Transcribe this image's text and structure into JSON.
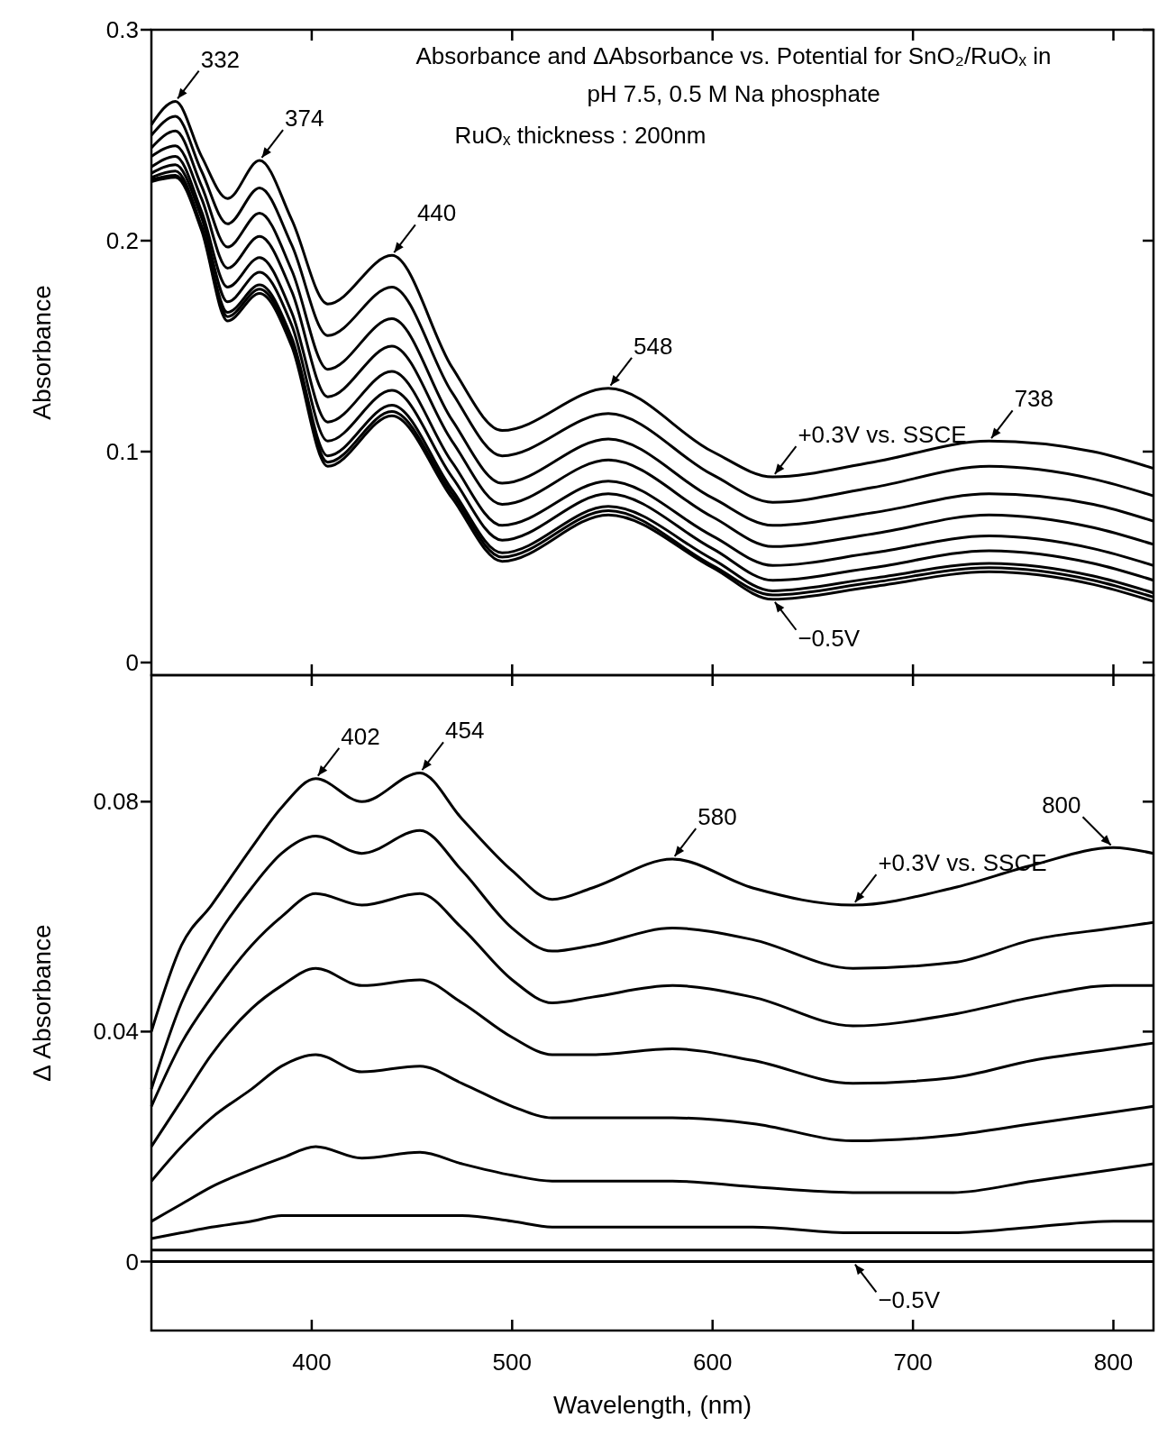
{
  "chart_data": [
    {
      "type": "line",
      "title": "Absorbance and ΔAbsorbance vs. Potential for SnO₂/RuOₓ in",
      "subtitle": "pH 7.5, 0.5 M Na phosphate",
      "ylabel": "Absorbance",
      "xlim": [
        320,
        820
      ],
      "xticks": [
        400,
        500,
        600,
        700,
        800
      ],
      "ylim": [
        -0.006,
        0.3
      ],
      "yticks": [
        0,
        0.1,
        0.2,
        0.3
      ],
      "tick_labels": "y",
      "x": [
        320,
        332,
        345,
        358,
        374,
        390,
        408,
        440,
        470,
        495,
        548,
        600,
        630,
        680,
        738,
        790,
        820
      ],
      "series": [
        {
          "color": "#000000",
          "values": [
            0.255,
            0.266,
            0.24,
            0.22,
            0.238,
            0.21,
            0.17,
            0.193,
            0.14,
            0.11,
            0.13,
            0.1,
            0.088,
            0.095,
            0.105,
            0.1,
            0.092
          ]
        },
        {
          "color": "#000000",
          "values": [
            0.25,
            0.259,
            0.233,
            0.208,
            0.225,
            0.198,
            0.155,
            0.178,
            0.128,
            0.098,
            0.118,
            0.089,
            0.076,
            0.083,
            0.093,
            0.087,
            0.079
          ]
        },
        {
          "color": "#000000",
          "values": [
            0.244,
            0.252,
            0.226,
            0.197,
            0.213,
            0.186,
            0.139,
            0.163,
            0.115,
            0.085,
            0.106,
            0.078,
            0.065,
            0.071,
            0.08,
            0.075,
            0.067
          ]
        },
        {
          "color": "#000000",
          "values": [
            0.24,
            0.245,
            0.22,
            0.187,
            0.202,
            0.176,
            0.126,
            0.15,
            0.105,
            0.075,
            0.096,
            0.069,
            0.055,
            0.061,
            0.07,
            0.064,
            0.056
          ]
        },
        {
          "color": "#000000",
          "values": [
            0.235,
            0.24,
            0.214,
            0.178,
            0.192,
            0.166,
            0.114,
            0.138,
            0.095,
            0.065,
            0.086,
            0.06,
            0.046,
            0.052,
            0.06,
            0.054,
            0.046
          ]
        },
        {
          "color": "#000000",
          "values": [
            0.232,
            0.236,
            0.211,
            0.171,
            0.185,
            0.16,
            0.105,
            0.129,
            0.088,
            0.058,
            0.08,
            0.054,
            0.039,
            0.045,
            0.053,
            0.047,
            0.039
          ]
        },
        {
          "color": "#000000",
          "values": [
            0.23,
            0.233,
            0.207,
            0.166,
            0.179,
            0.154,
            0.098,
            0.122,
            0.082,
            0.052,
            0.074,
            0.049,
            0.034,
            0.04,
            0.047,
            0.041,
            0.033
          ]
        },
        {
          "color": "#000000",
          "values": [
            0.229,
            0.231,
            0.206,
            0.164,
            0.177,
            0.152,
            0.095,
            0.119,
            0.08,
            0.05,
            0.072,
            0.046,
            0.032,
            0.038,
            0.045,
            0.039,
            0.031
          ]
        },
        {
          "color": "#000000",
          "values": [
            0.228,
            0.23,
            0.205,
            0.162,
            0.175,
            0.15,
            0.093,
            0.117,
            0.078,
            0.048,
            0.07,
            0.045,
            0.03,
            0.036,
            0.043,
            0.037,
            0.029
          ]
        }
      ],
      "annotations": [
        "RuOₓ thickness : 200nm",
        {
          "text": "332",
          "x": 332,
          "y": 0.266
        },
        {
          "text": "374",
          "x": 374,
          "y": 0.238
        },
        {
          "text": "440",
          "x": 440,
          "y": 0.193
        },
        {
          "text": "548",
          "x": 548,
          "y": 0.13
        },
        {
          "text": "+0.3V vs. SSCE",
          "x": 630,
          "y": 0.088
        },
        {
          "text": "738",
          "x": 738,
          "y": 0.105
        },
        {
          "text": "−0.5V",
          "x": 630,
          "y": 0.03
        }
      ]
    },
    {
      "type": "line",
      "ylabel": "Δ Absorbance",
      "xlabel": "Wavelength, (nm)",
      "xlim": [
        320,
        820
      ],
      "xticks": [
        400,
        500,
        600,
        700,
        800
      ],
      "ylim": [
        -0.012,
        0.102
      ],
      "yticks": [
        0,
        0.04,
        0.08
      ],
      "x": [
        320,
        335,
        350,
        370,
        385,
        402,
        425,
        454,
        475,
        500,
        520,
        540,
        580,
        620,
        670,
        720,
        760,
        800,
        820
      ],
      "series": [
        {
          "color": "#000000",
          "values": [
            0.04,
            0.055,
            0.062,
            0.072,
            0.079,
            0.084,
            0.08,
            0.085,
            0.077,
            0.068,
            0.063,
            0.065,
            0.07,
            0.065,
            0.062,
            0.065,
            0.069,
            0.072,
            0.071
          ]
        },
        {
          "color": "#000000",
          "values": [
            0.03,
            0.045,
            0.055,
            0.065,
            0.071,
            0.074,
            0.071,
            0.075,
            0.068,
            0.058,
            0.054,
            0.055,
            0.058,
            0.056,
            0.051,
            0.052,
            0.056,
            0.058,
            0.059
          ]
        },
        {
          "color": "#000000",
          "values": [
            0.027,
            0.038,
            0.046,
            0.055,
            0.06,
            0.064,
            0.062,
            0.064,
            0.058,
            0.049,
            0.045,
            0.046,
            0.048,
            0.046,
            0.041,
            0.043,
            0.046,
            0.048,
            0.048
          ]
        },
        {
          "color": "#000000",
          "values": [
            0.02,
            0.028,
            0.036,
            0.044,
            0.048,
            0.051,
            0.048,
            0.049,
            0.045,
            0.039,
            0.036,
            0.036,
            0.037,
            0.035,
            0.031,
            0.032,
            0.035,
            0.037,
            0.038
          ]
        },
        {
          "color": "#000000",
          "values": [
            0.014,
            0.02,
            0.025,
            0.03,
            0.034,
            0.036,
            0.033,
            0.034,
            0.031,
            0.027,
            0.025,
            0.025,
            0.025,
            0.024,
            0.021,
            0.022,
            0.024,
            0.026,
            0.027
          ]
        },
        {
          "color": "#000000",
          "values": [
            0.007,
            0.01,
            0.013,
            0.016,
            0.018,
            0.02,
            0.018,
            0.019,
            0.017,
            0.015,
            0.014,
            0.014,
            0.014,
            0.013,
            0.012,
            0.012,
            0.014,
            0.016,
            0.017
          ]
        },
        {
          "color": "#000000",
          "values": [
            0.004,
            0.005,
            0.006,
            0.007,
            0.008,
            0.008,
            0.008,
            0.008,
            0.008,
            0.007,
            0.006,
            0.006,
            0.006,
            0.006,
            0.005,
            0.005,
            0.006,
            0.007,
            0.007
          ]
        },
        {
          "color": "#000000",
          "values": [
            0.002,
            0.002,
            0.002,
            0.002,
            0.002,
            0.002,
            0.002,
            0.002,
            0.002,
            0.002,
            0.002,
            0.002,
            0.002,
            0.002,
            0.002,
            0.002,
            0.002,
            0.002,
            0.002
          ]
        },
        {
          "color": "#000000",
          "values": [
            0,
            0,
            0,
            0,
            0,
            0,
            0,
            0,
            0,
            0,
            0,
            0,
            0,
            0,
            0,
            0,
            0,
            0,
            0
          ]
        }
      ],
      "annotations": [
        {
          "text": "402",
          "x": 402,
          "y": 0.084
        },
        {
          "text": "454",
          "x": 454,
          "y": 0.085
        },
        {
          "text": "580",
          "x": 580,
          "y": 0.07
        },
        {
          "text": "+0.3V vs. SSCE",
          "x": 670,
          "y": 0.062
        },
        {
          "text": "800",
          "x": 800,
          "y": 0.072
        },
        {
          "text": "−0.5V",
          "x": 670,
          "y": 0
        }
      ]
    }
  ]
}
